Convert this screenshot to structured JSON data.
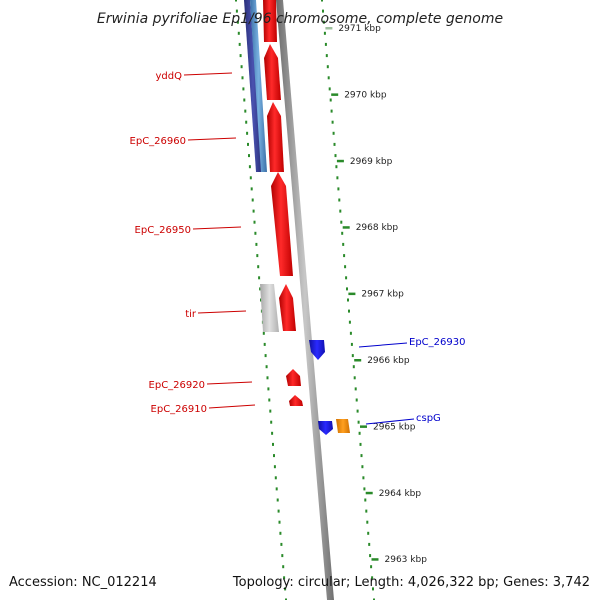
{
  "title": "Erwinia pyrifoliae Ep1/96 chromosome, complete genome",
  "footer": {
    "accession": "Accession: NC_012214",
    "topology": "Topology: circular; Length: 4,026,322 bp; Genes: 3,742"
  },
  "scale": {
    "ticks": [
      "2971 kbp",
      "2970 kbp",
      "2969 kbp",
      "2968 kbp",
      "2967 kbp",
      "2966 kbp",
      "2965 kbp",
      "2964 kbp",
      "2963 kbp"
    ]
  },
  "genes": [
    {
      "name": "yddQ",
      "strand": "left",
      "color": "#cc0000"
    },
    {
      "name": "EpC_26960",
      "strand": "left",
      "color": "#cc0000"
    },
    {
      "name": "EpC_26950",
      "strand": "left",
      "color": "#cc0000"
    },
    {
      "name": "tir",
      "strand": "left",
      "color": "#cc0000"
    },
    {
      "name": "EpC_26930",
      "strand": "right",
      "color": "#0000cc"
    },
    {
      "name": "EpC_26920",
      "strand": "left",
      "color": "#cc0000"
    },
    {
      "name": "EpC_26910",
      "strand": "left",
      "color": "#cc0000"
    },
    {
      "name": "cspG",
      "strand": "right",
      "color": "#0000cc"
    }
  ],
  "colors": {
    "forward_gene": "#ff0000",
    "reverse_gene": "#0000ff",
    "other_gene": "#ff8c00",
    "grey_feature": "#c8c8c8",
    "blue_feature": "#3a3f9a",
    "backbone": "#888888",
    "dotted_guides": "#2a8a2a"
  }
}
